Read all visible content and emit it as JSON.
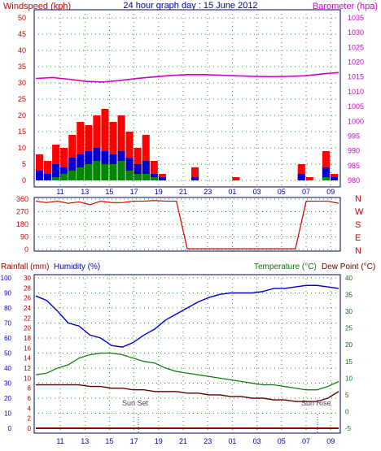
{
  "header": {
    "left_title": "Windspeed (kph)",
    "center_title": "24 hour graph day : 15 June 2012",
    "right_title": "Barometer (hpa)"
  },
  "lower_header": {
    "rainfall": "Rainfall (mm)",
    "humidity": "Humidity (%)",
    "temperature": "Temperature (°C)",
    "dewpoint": "Dew Point (°C)"
  },
  "annotations": {
    "sunset": "Sun Set",
    "sunrise": "Sun Rise"
  },
  "colors": {
    "wind_gust": "#ff0000",
    "wind_avg": "#0000cc",
    "wind_low": "#008800",
    "barometer": "#cc00cc",
    "direction": "#cc0000",
    "humidity": "#0000cc",
    "temperature": "#007700",
    "dewpoint": "#660000",
    "rainfall": "#990000",
    "axis_red": "#cc0000",
    "axis_blue": "#0000aa",
    "axis_green": "#007700",
    "grid": "#229922"
  },
  "chart_data": [
    {
      "id": "wind_baro",
      "type": "line",
      "x_ticks": [
        "11",
        "13",
        "15",
        "17",
        "19",
        "21",
        "23",
        "01",
        "03",
        "05",
        "07",
        "09"
      ],
      "y_left": {
        "label": "Windspeed (kph)",
        "ticks": [
          0,
          5,
          10,
          15,
          20,
          25,
          30,
          35,
          40,
          45,
          50
        ],
        "range": [
          0,
          50
        ]
      },
      "y_right": {
        "label": "Barometer (hpa)",
        "ticks": [
          980,
          985,
          990,
          995,
          1000,
          1005,
          1010,
          1015,
          1020,
          1025,
          1030,
          1035
        ],
        "range": [
          980,
          1035
        ]
      },
      "series": [
        {
          "name": "Barometer",
          "values": [
            1014.5,
            1014.8,
            1014.2,
            1013.5,
            1013.3,
            1013.8,
            1014.5,
            1015.0,
            1015.5,
            1015.8,
            1015.8,
            1015.6,
            1015.4,
            1015.2,
            1015.1,
            1015.2,
            1015.4,
            1016.0,
            1016.5
          ]
        },
        {
          "name": "Wind gust",
          "values": [
            8,
            6,
            11,
            10,
            14,
            18,
            17,
            20,
            22,
            18,
            20,
            15,
            10,
            14,
            6,
            2,
            0,
            0,
            0,
            4,
            0,
            0,
            0,
            0,
            1,
            0,
            0,
            0,
            0,
            0,
            0,
            0,
            5,
            1,
            0,
            9,
            2
          ]
        },
        {
          "name": "Wind avg",
          "values": [
            3,
            2,
            5,
            4,
            7,
            8,
            9,
            10,
            9,
            8,
            9,
            7,
            5,
            6,
            2,
            1,
            0,
            0,
            0,
            1,
            0,
            0,
            0,
            0,
            0,
            0,
            0,
            0,
            0,
            0,
            0,
            0,
            2,
            0,
            0,
            4,
            1
          ]
        },
        {
          "name": "Wind low",
          "values": [
            0,
            0,
            1,
            2,
            3,
            4,
            5,
            6,
            5,
            5,
            6,
            3,
            2,
            2,
            1,
            0,
            0,
            0,
            0,
            0,
            0,
            0,
            0,
            0,
            0,
            0,
            0,
            0,
            0,
            0,
            0,
            0,
            0,
            0,
            0,
            1,
            0
          ]
        }
      ]
    },
    {
      "id": "direction",
      "type": "line",
      "y_left_ticks": [
        0,
        90,
        180,
        270,
        360
      ],
      "y_right_labels": [
        "N",
        "W",
        "S",
        "E",
        "N"
      ],
      "range": [
        0,
        360
      ],
      "series": [
        {
          "name": "Wind direction",
          "values": [
            345,
            335,
            345,
            330,
            340,
            320,
            345,
            335,
            335,
            345,
            345,
            350,
            345,
            345,
            5,
            5,
            5,
            5,
            5,
            5,
            5,
            5,
            5,
            5,
            5,
            345,
            345,
            345,
            330
          ]
        }
      ]
    },
    {
      "id": "temp_hum",
      "type": "line",
      "x_ticks": [
        "11",
        "13",
        "15",
        "17",
        "19",
        "21",
        "23",
        "01",
        "03",
        "05",
        "07",
        "09"
      ],
      "y_humidity": {
        "ticks": [
          0,
          10,
          20,
          30,
          40,
          50,
          60,
          70,
          80,
          90,
          100
        ],
        "range": [
          0,
          100
        ]
      },
      "y_rainfall": {
        "ticks": [
          0,
          2,
          4,
          6,
          8,
          10,
          12,
          14,
          16,
          18,
          20,
          22,
          24,
          26,
          28,
          30
        ],
        "range": [
          0,
          30
        ]
      },
      "y_temperature": {
        "ticks": [
          -5,
          0,
          5,
          10,
          15,
          20,
          25,
          30,
          35,
          40
        ],
        "range": [
          -5,
          40
        ]
      },
      "series": [
        {
          "name": "Humidity",
          "values": [
            88,
            85,
            78,
            70,
            68,
            62,
            60,
            55,
            54,
            57,
            62,
            66,
            72,
            76,
            80,
            84,
            87,
            89,
            90,
            90,
            90,
            91,
            93,
            93,
            94,
            95,
            95,
            94,
            93
          ]
        },
        {
          "name": "Temperature",
          "values": [
            11,
            11.5,
            13,
            14,
            16,
            17,
            17.5,
            17.5,
            17,
            16,
            15,
            14.5,
            13,
            12,
            11.5,
            11,
            10.5,
            10,
            9.5,
            9,
            8.5,
            8,
            8,
            7.5,
            7,
            6.5,
            6.5,
            7.5,
            9
          ]
        },
        {
          "name": "Dew point",
          "values": [
            8,
            8,
            8,
            8,
            8,
            7.5,
            7.5,
            7,
            7,
            6.5,
            6.5,
            6,
            6,
            6,
            5.5,
            5.5,
            5,
            5,
            4.5,
            4.5,
            4,
            4,
            3.5,
            3.5,
            3,
            3,
            3,
            4,
            6
          ]
        },
        {
          "name": "Rainfall",
          "values": [
            0,
            0,
            0,
            0,
            0,
            0,
            0,
            0,
            0,
            0,
            0,
            0,
            0,
            0,
            0,
            0,
            0,
            0,
            0,
            0,
            0,
            0,
            0,
            0,
            0,
            0,
            0,
            0,
            0
          ]
        }
      ]
    }
  ]
}
